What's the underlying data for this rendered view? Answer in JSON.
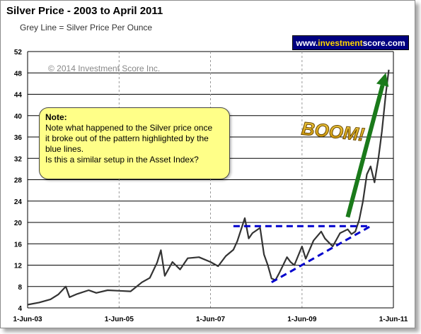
{
  "title": "Silver Price - 2003 to April 2011",
  "legend": {
    "label": "Grey Line =",
    "series": "Silver Price Per Ounce"
  },
  "brand": {
    "prefix": "www.",
    "highlight": "investment",
    "suffix": "score.com"
  },
  "copyright": "© 2014 Investment Score Inc.",
  "note": {
    "title": "Note:",
    "lines": [
      "Note what happened to the Silver price once",
      "it broke out of the pattern highlighted by the",
      "blue lines.",
      "Is this a similar setup in the Asset Index?"
    ]
  },
  "boom_text": "BOOM!",
  "colors": {
    "series": "#333333",
    "pattern_lines": "#0000cc",
    "arrow": "#1a7a1a",
    "note_bg": "#ffff88",
    "brand_bg": "#000080",
    "brand_highlight": "#ffd700",
    "boom_fill": "#d9a300"
  },
  "chart_data": {
    "type": "line",
    "title": "Silver Price - 2003 to April 2011",
    "xlabel": "",
    "ylabel": "",
    "ylim": [
      4,
      52
    ],
    "yticks": [
      4,
      8,
      12,
      16,
      20,
      24,
      28,
      32,
      36,
      40,
      44,
      48,
      52
    ],
    "xlim": [
      "2003-06-01",
      "2011-06-01"
    ],
    "xticks": [
      {
        "date": "2003-06-01",
        "label": "1-Jun-03"
      },
      {
        "date": "2005-06-01",
        "label": "1-Jun-05"
      },
      {
        "date": "2007-06-01",
        "label": "1-Jun-07"
      },
      {
        "date": "2009-06-01",
        "label": "1-Jun-09"
      },
      {
        "date": "2011-06-01",
        "label": "1-Jun-11"
      }
    ],
    "grid": {
      "horizontal": true,
      "vertical": "dashed"
    },
    "series": [
      {
        "name": "Silver Price Per Ounce",
        "points": [
          [
            "2003-06-01",
            4.6
          ],
          [
            "2003-09-01",
            5.0
          ],
          [
            "2003-12-01",
            5.6
          ],
          [
            "2004-02-01",
            6.5
          ],
          [
            "2004-04-01",
            8.0
          ],
          [
            "2004-05-01",
            6.0
          ],
          [
            "2004-07-01",
            6.6
          ],
          [
            "2004-10-01",
            7.3
          ],
          [
            "2004-12-01",
            6.8
          ],
          [
            "2005-03-01",
            7.3
          ],
          [
            "2005-06-01",
            7.2
          ],
          [
            "2005-09-01",
            7.1
          ],
          [
            "2005-12-01",
            8.8
          ],
          [
            "2006-02-01",
            9.6
          ],
          [
            "2006-04-01",
            12.5
          ],
          [
            "2006-05-01",
            14.8
          ],
          [
            "2006-06-01",
            10.0
          ],
          [
            "2006-08-01",
            12.6
          ],
          [
            "2006-10-01",
            11.2
          ],
          [
            "2006-12-01",
            13.3
          ],
          [
            "2007-03-01",
            13.5
          ],
          [
            "2007-06-01",
            12.6
          ],
          [
            "2007-08-01",
            11.8
          ],
          [
            "2007-10-01",
            13.7
          ],
          [
            "2007-12-01",
            14.9
          ],
          [
            "2008-01-01",
            16.5
          ],
          [
            "2008-03-01",
            20.8
          ],
          [
            "2008-04-01",
            17.0
          ],
          [
            "2008-05-01",
            18.0
          ],
          [
            "2008-07-01",
            19.0
          ],
          [
            "2008-08-01",
            14.0
          ],
          [
            "2008-09-01",
            12.0
          ],
          [
            "2008-10-01",
            9.5
          ],
          [
            "2008-11-01",
            9.2
          ],
          [
            "2008-12-01",
            10.5
          ],
          [
            "2009-02-01",
            13.5
          ],
          [
            "2009-03-01",
            12.6
          ],
          [
            "2009-04-01",
            12.0
          ],
          [
            "2009-06-01",
            15.5
          ],
          [
            "2009-07-01",
            13.2
          ],
          [
            "2009-09-01",
            16.6
          ],
          [
            "2009-11-01",
            18.3
          ],
          [
            "2009-12-01",
            17.0
          ],
          [
            "2010-02-01",
            15.5
          ],
          [
            "2010-04-01",
            18.0
          ],
          [
            "2010-06-01",
            18.7
          ],
          [
            "2010-07-01",
            17.8
          ],
          [
            "2010-08-01",
            18.3
          ],
          [
            "2010-09-01",
            20.5
          ],
          [
            "2010-10-01",
            24.0
          ],
          [
            "2010-11-01",
            29.0
          ],
          [
            "2010-12-01",
            30.5
          ],
          [
            "2011-01-01",
            27.5
          ],
          [
            "2011-02-01",
            32.0
          ],
          [
            "2011-03-01",
            37.0
          ],
          [
            "2011-04-01",
            44.0
          ],
          [
            "2011-04-25",
            48.6
          ]
        ]
      }
    ],
    "annotations": {
      "resistance_line": {
        "from": [
          "2007-12-01",
          19.3
        ],
        "to": [
          "2010-12-01",
          19.3
        ],
        "style": "dashed"
      },
      "support_line": {
        "from": [
          "2008-10-01",
          8.8
        ],
        "to": [
          "2010-12-01",
          19.3
        ],
        "style": "dashed"
      },
      "arrow": {
        "from": [
          "2010-06-01",
          21.0
        ],
        "to": [
          "2011-04-01",
          48.0
        ]
      }
    }
  }
}
